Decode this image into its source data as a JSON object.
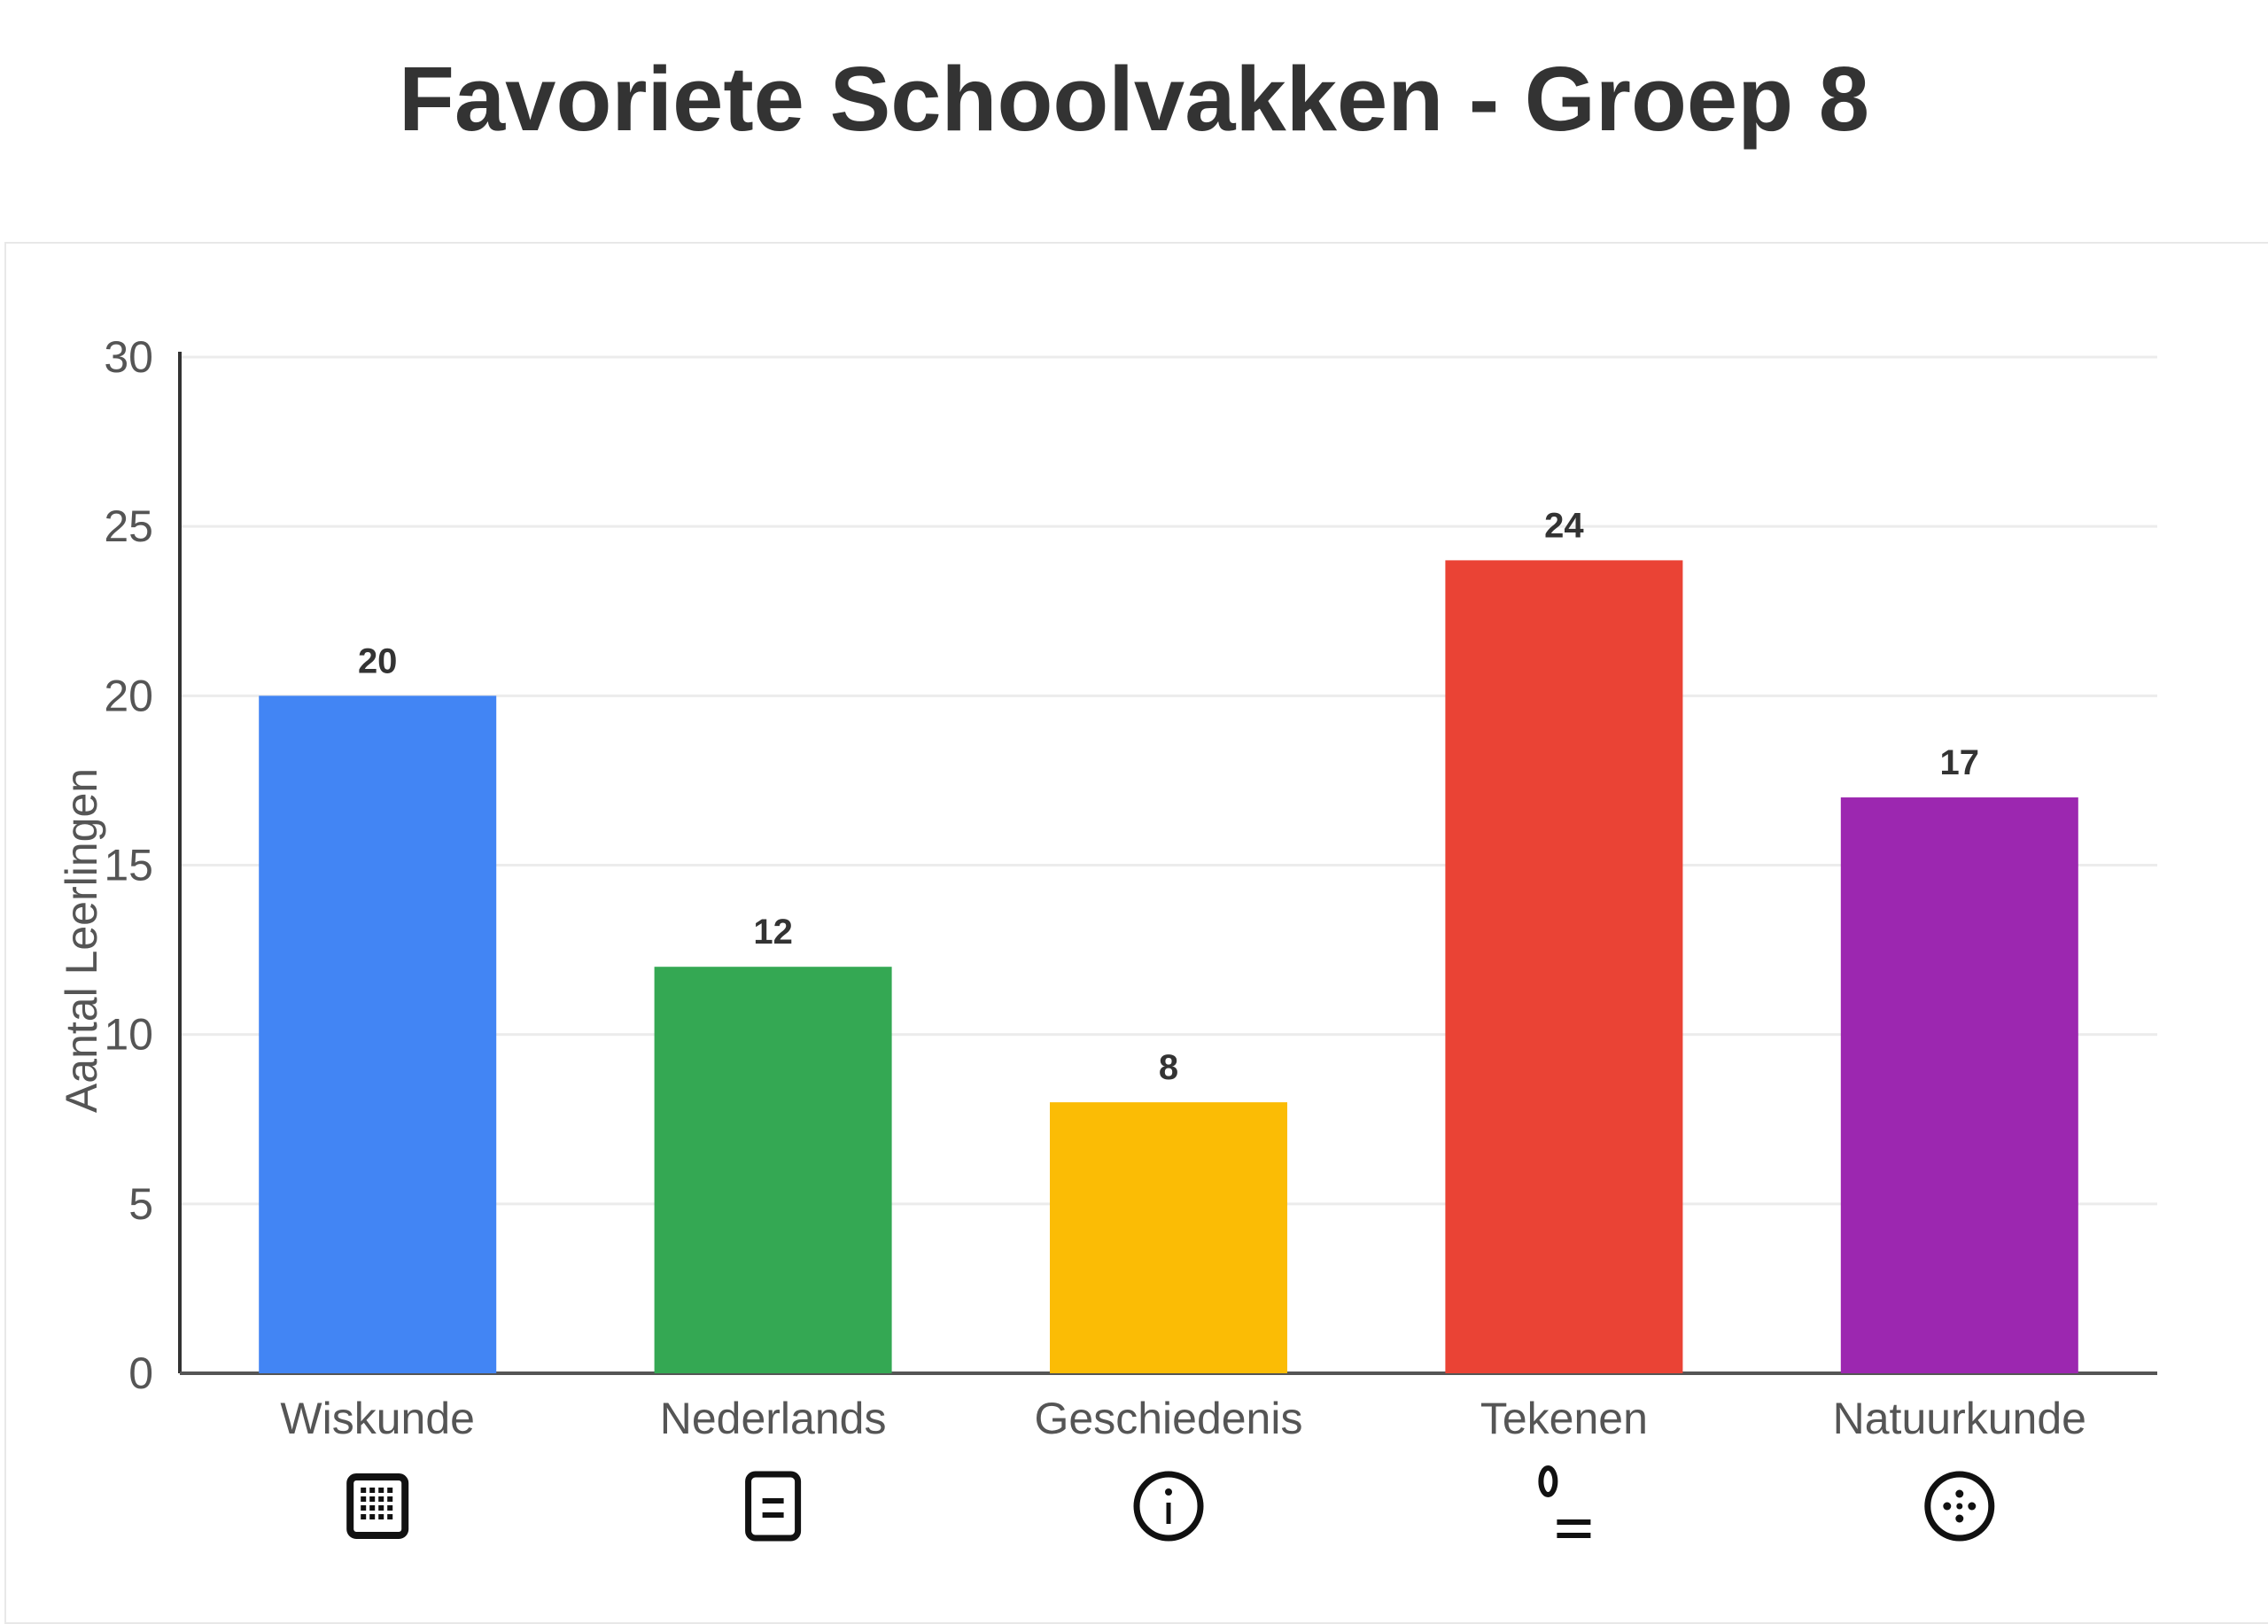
{
  "page": {
    "title": "Favoriete Schoolvakken - Groep 8"
  },
  "chart_data": {
    "type": "bar",
    "title": "Favoriete Schoolvakken - Groep 8",
    "xlabel": "",
    "ylabel": "Aantal Leerlingen",
    "ylim": [
      0,
      30
    ],
    "yticks": [
      0,
      5,
      10,
      15,
      20,
      25,
      30
    ],
    "grid": true,
    "legend": "none",
    "categories": [
      "Wiskunde",
      "Nederlands",
      "Geschiedenis",
      "Tekenen",
      "Natuurkunde"
    ],
    "values": [
      20,
      12,
      8,
      24,
      17
    ],
    "colors": [
      "#4285F4",
      "#34A853",
      "#FBBC05",
      "#EA4335",
      "#9C27B0"
    ],
    "icons": [
      "calculator-icon",
      "book-icon",
      "clock-icon",
      "palette-icon",
      "atom-icon"
    ]
  }
}
